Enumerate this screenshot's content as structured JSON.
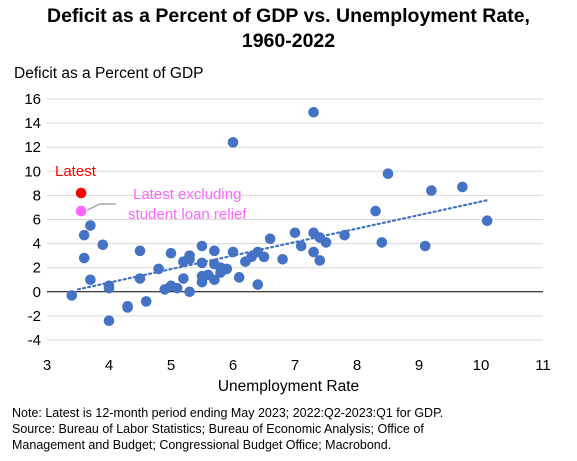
{
  "chart_data": {
    "type": "scatter",
    "title_line1": "Deficit as a Percent of GDP vs. Unemployment Rate,",
    "title_line2": "1960-2022",
    "ylabel": "Deficit as a Percent of GDP",
    "xlabel": "Unemployment Rate",
    "xlim": [
      3,
      11
    ],
    "ylim": [
      -4,
      16
    ],
    "x_ticks": [
      3,
      4,
      5,
      6,
      7,
      8,
      9,
      10,
      11
    ],
    "y_ticks": [
      -4,
      -2,
      0,
      2,
      4,
      6,
      8,
      10,
      12,
      14,
      16
    ],
    "grid": "horizontal",
    "colors": {
      "points": "#4472c4",
      "latest": "#ff0000",
      "latest_ex": "#ff66ff",
      "trend": "#4472c4"
    },
    "points": [
      {
        "x": 3.4,
        "y": -0.3
      },
      {
        "x": 3.6,
        "y": 2.8
      },
      {
        "x": 3.6,
        "y": 4.7
      },
      {
        "x": 3.7,
        "y": 5.5
      },
      {
        "x": 3.7,
        "y": 1.0
      },
      {
        "x": 3.9,
        "y": 3.9
      },
      {
        "x": 4.0,
        "y": -2.4
      },
      {
        "x": 4.0,
        "y": 0.3
      },
      {
        "x": 4.0,
        "y": 0.5
      },
      {
        "x": 4.3,
        "y": -1.3
      },
      {
        "x": 4.3,
        "y": -1.2
      },
      {
        "x": 4.5,
        "y": 3.4
      },
      {
        "x": 4.5,
        "y": 1.1
      },
      {
        "x": 4.6,
        "y": -0.8
      },
      {
        "x": 4.8,
        "y": 1.9
      },
      {
        "x": 4.9,
        "y": 0.2
      },
      {
        "x": 5.0,
        "y": 3.2
      },
      {
        "x": 5.0,
        "y": 0.5
      },
      {
        "x": 5.1,
        "y": 0.3
      },
      {
        "x": 5.2,
        "y": 2.5
      },
      {
        "x": 5.2,
        "y": 1.1
      },
      {
        "x": 5.3,
        "y": 3.0
      },
      {
        "x": 5.3,
        "y": 2.7
      },
      {
        "x": 5.3,
        "y": 0.0
      },
      {
        "x": 5.5,
        "y": 3.8
      },
      {
        "x": 5.5,
        "y": 2.4
      },
      {
        "x": 5.5,
        "y": 1.3
      },
      {
        "x": 5.5,
        "y": 0.8
      },
      {
        "x": 5.6,
        "y": 1.4
      },
      {
        "x": 5.7,
        "y": 3.4
      },
      {
        "x": 5.7,
        "y": 2.3
      },
      {
        "x": 5.7,
        "y": 1.0
      },
      {
        "x": 5.8,
        "y": 2.0
      },
      {
        "x": 5.8,
        "y": 1.6
      },
      {
        "x": 5.9,
        "y": 1.9
      },
      {
        "x": 6.0,
        "y": 12.4
      },
      {
        "x": 6.0,
        "y": 3.3
      },
      {
        "x": 6.1,
        "y": 1.2
      },
      {
        "x": 6.2,
        "y": 2.5
      },
      {
        "x": 6.3,
        "y": 2.9
      },
      {
        "x": 6.4,
        "y": 3.3
      },
      {
        "x": 6.4,
        "y": 0.6
      },
      {
        "x": 6.5,
        "y": 2.9
      },
      {
        "x": 6.6,
        "y": 4.4
      },
      {
        "x": 6.8,
        "y": 2.7
      },
      {
        "x": 7.0,
        "y": 4.9
      },
      {
        "x": 7.1,
        "y": 3.8
      },
      {
        "x": 7.3,
        "y": 14.9
      },
      {
        "x": 7.3,
        "y": 4.9
      },
      {
        "x": 7.3,
        "y": 3.3
      },
      {
        "x": 7.4,
        "y": 4.5
      },
      {
        "x": 7.4,
        "y": 2.6
      },
      {
        "x": 7.5,
        "y": 4.1
      },
      {
        "x": 7.8,
        "y": 4.7
      },
      {
        "x": 8.3,
        "y": 6.7
      },
      {
        "x": 8.4,
        "y": 4.1
      },
      {
        "x": 8.5,
        "y": 9.8
      },
      {
        "x": 9.1,
        "y": 3.8
      },
      {
        "x": 9.2,
        "y": 8.4
      },
      {
        "x": 9.7,
        "y": 8.7
      },
      {
        "x": 10.1,
        "y": 5.9
      }
    ],
    "latest": {
      "x": 3.55,
      "y": 8.2,
      "label": "Latest"
    },
    "latest_ex": {
      "x": 3.55,
      "y": 6.7,
      "label_line1": "Latest excluding",
      "label_line2": "student loan relief"
    },
    "trendline": {
      "x0": 3.5,
      "y0": 0.2,
      "x1": 10.1,
      "y1": 7.6,
      "style": "dotted"
    }
  },
  "note": {
    "line1": "Note: Latest is 12-month period ending May 2023; 2022:Q2-2023:Q1 for GDP.",
    "line2": "Source: Bureau of Labor Statistics; Bureau of Economic Analysis; Office of",
    "line3": "Management and Budget; Congressional Budget Office; Macrobond."
  }
}
